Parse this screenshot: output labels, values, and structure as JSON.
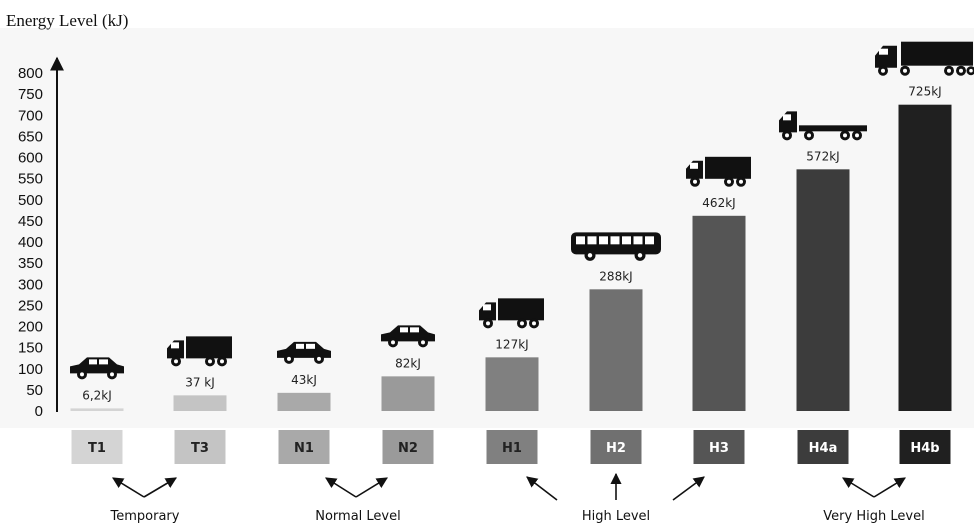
{
  "chart_data": {
    "type": "bar",
    "title": "Energy Level (kJ)",
    "categories": [
      "T1",
      "T3",
      "N1",
      "N2",
      "H1",
      "H2",
      "H3",
      "H4a",
      "H4b"
    ],
    "values": [
      6.2,
      37,
      43,
      82,
      127,
      288,
      462,
      572,
      725
    ],
    "value_labels": [
      "6,2kJ",
      "37 kJ",
      "43kJ",
      "82kJ",
      "127kJ",
      "288kJ",
      "462kJ",
      "572kJ",
      "725kJ"
    ],
    "vehicle_icons": [
      "car-icon",
      "truck-icon",
      "car-icon",
      "car-icon",
      "truck-icon",
      "bus-icon",
      "truck-icon",
      "semi-trailer-icon",
      "long-semi-trailer-icon"
    ],
    "bar_colors": [
      "#d4d4d4",
      "#c4c4c4",
      "#a9a9a9",
      "#9a9a9a",
      "#808080",
      "#707070",
      "#555555",
      "#3c3c3c",
      "#202020"
    ],
    "category_box_colors": [
      "#d4d4d4",
      "#c4c4c4",
      "#a9a9a9",
      "#9a9a9a",
      "#808080",
      "#707070",
      "#555555",
      "#3c3c3c",
      "#202020"
    ],
    "category_text_colors": [
      "#222222",
      "#222222",
      "#222222",
      "#222222",
      "#222222",
      "#ffffff",
      "#ffffff",
      "#ffffff",
      "#ffffff"
    ],
    "ylim": [
      0,
      800
    ],
    "yticks": [
      0,
      50,
      100,
      150,
      200,
      250,
      300,
      350,
      400,
      450,
      500,
      550,
      600,
      650,
      700,
      750,
      800
    ],
    "grid": false,
    "groups": [
      "Temporary",
      "Normal Level",
      "High Level",
      "Very High Level"
    ],
    "background_color": "#f7f7f7"
  }
}
